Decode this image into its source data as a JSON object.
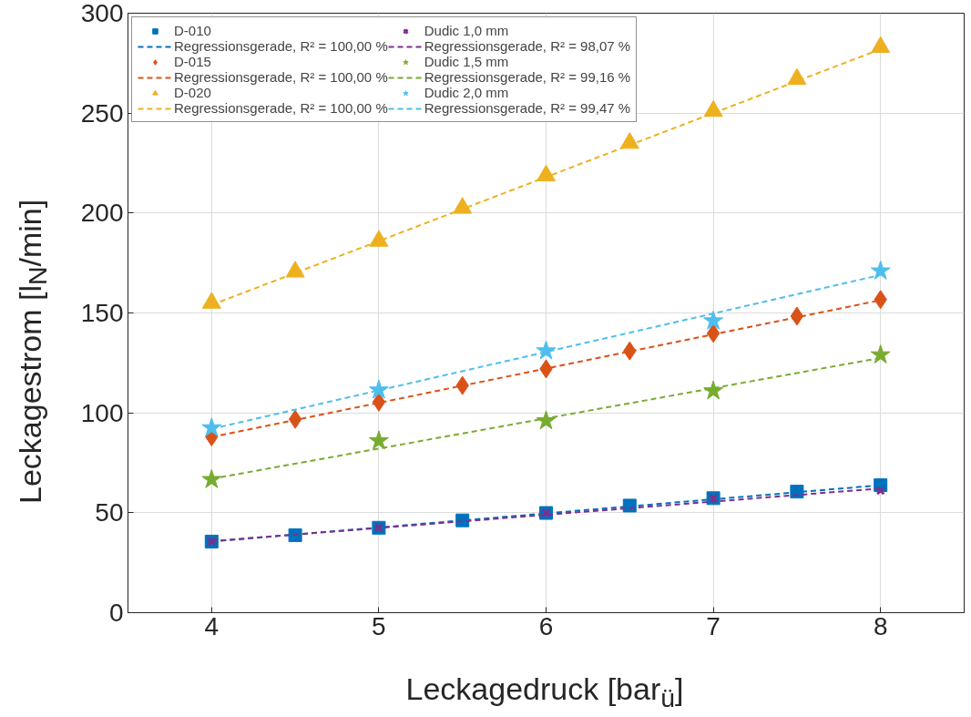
{
  "chart_data": {
    "type": "scatter",
    "xlabel": "Leckagedruck [bar$_{ü}$]",
    "ylabel": "Leckagestrom [l$_{N}$/min]",
    "xlim": [
      3.5,
      8.5
    ],
    "xticks": [
      4,
      5,
      6,
      7,
      8
    ],
    "ylim": [
      0,
      300
    ],
    "yticks": [
      0,
      50,
      100,
      150,
      200,
      250,
      300
    ],
    "grid": true,
    "legend": "top left",
    "series": [
      {
        "name": "D-010",
        "color": "#0072bd",
        "marker": "square",
        "x": [
          4,
          4.5,
          5,
          5.5,
          6,
          6.5,
          7,
          7.5,
          8
        ],
        "values": [
          35.6,
          38.8,
          42.5,
          46.2,
          49.9,
          53.6,
          57.3,
          60.6,
          63.8
        ]
      },
      {
        "name": "Regressionsgerade, R² = 100,00 %",
        "type": "line",
        "line_style": "dashed",
        "color": "#0072bd",
        "x": [
          4,
          8
        ],
        "values": [
          35.6,
          63.8
        ]
      },
      {
        "name": "D-015",
        "color": "#d95319",
        "marker": "diamond",
        "x": [
          4,
          4.5,
          5,
          5.5,
          6,
          6.5,
          7,
          7.5,
          8
        ],
        "values": [
          88,
          96.8,
          105.4,
          113.7,
          122,
          131,
          139.8,
          148.4,
          156.7
        ]
      },
      {
        "name": "Regressionsgerade, R² = 100,00 %",
        "type": "line",
        "line_style": "dashed",
        "color": "#d95319",
        "x": [
          4,
          8
        ],
        "values": [
          87.9,
          156.4
        ]
      },
      {
        "name": "D-020",
        "color": "#edb120",
        "marker": "triangle",
        "x": [
          4,
          4.5,
          5,
          5.5,
          6,
          6.5,
          7,
          7.5,
          8
        ],
        "values": [
          155,
          170.6,
          186,
          202.5,
          218.7,
          235,
          251,
          267,
          283
        ]
      },
      {
        "name": "Regressionsgerade, R² = 100,00 %",
        "type": "line",
        "line_style": "dashed",
        "color": "#edb120",
        "x": [
          4,
          8
        ],
        "values": [
          154,
          282
        ]
      },
      {
        "name": "Dudic 1,0 mm",
        "color": "#7e2f8e",
        "marker": "cross",
        "x": [
          4,
          5,
          6,
          7,
          8
        ],
        "values": [
          35.6,
          42.5,
          49.9,
          57.3,
          61
        ]
      },
      {
        "name": "Regressionsgerade, R² = 98,07 %",
        "type": "line",
        "line_style": "dashed",
        "color": "#7e2f8e",
        "x": [
          4,
          8
        ],
        "values": [
          35.8,
          62.2
        ]
      },
      {
        "name": "Dudic 1,5 mm",
        "color": "#77ac30",
        "marker": "star",
        "x": [
          4,
          5,
          6,
          7,
          8
        ],
        "values": [
          66.6,
          86,
          96,
          111,
          129
        ]
      },
      {
        "name": "Regressionsgerade, R² = 99,16 %",
        "type": "line",
        "line_style": "dashed",
        "color": "#77ac30",
        "x": [
          4,
          8
        ],
        "values": [
          67,
          127.5
        ]
      },
      {
        "name": "Dudic 2,0 mm",
        "color": "#4dbeee",
        "marker": "star",
        "x": [
          4,
          5,
          6,
          7,
          8
        ],
        "values": [
          92.5,
          111.4,
          131,
          146,
          171
        ]
      },
      {
        "name": "Regressionsgerade, R² = 99,47 %",
        "type": "line",
        "line_style": "dashed",
        "color": "#4dbeee",
        "x": [
          4,
          8
        ],
        "values": [
          92,
          169
        ]
      }
    ]
  }
}
